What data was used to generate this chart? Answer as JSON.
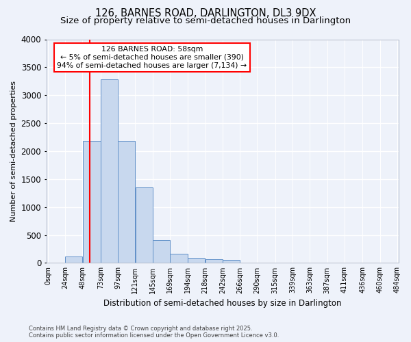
{
  "title1": "126, BARNES ROAD, DARLINGTON, DL3 9DX",
  "title2": "Size of property relative to semi-detached houses in Darlington",
  "xlabel": "Distribution of semi-detached houses by size in Darlington",
  "ylabel": "Number of semi-detached properties",
  "bar_values": [
    0,
    110,
    2180,
    3280,
    2180,
    1350,
    410,
    160,
    90,
    70,
    50,
    0,
    0,
    0,
    0,
    0,
    0,
    0,
    0,
    0
  ],
  "bin_edges": [
    0,
    24,
    48,
    73,
    97,
    121,
    145,
    169,
    194,
    218,
    242,
    266,
    290,
    315,
    339,
    363,
    387,
    411,
    436,
    460,
    484
  ],
  "bin_labels": [
    "0sqm",
    "24sqm",
    "48sqm",
    "73sqm",
    "97sqm",
    "121sqm",
    "145sqm",
    "169sqm",
    "194sqm",
    "218sqm",
    "242sqm",
    "266sqm",
    "290sqm",
    "315sqm",
    "339sqm",
    "363sqm",
    "387sqm",
    "411sqm",
    "436sqm",
    "460sqm",
    "484sqm"
  ],
  "bar_color": "#c8d8ee",
  "bar_edge_color": "#6090c8",
  "ylim": [
    0,
    4000
  ],
  "yticks": [
    0,
    500,
    1000,
    1500,
    2000,
    2500,
    3000,
    3500,
    4000
  ],
  "property_sqm": 58,
  "annotation_title": "126 BARNES ROAD: 58sqm",
  "annotation_line1": "← 5% of semi-detached houses are smaller (390)",
  "annotation_line2": "94% of semi-detached houses are larger (7,134) →",
  "footer1": "Contains HM Land Registry data © Crown copyright and database right 2025.",
  "footer2": "Contains public sector information licensed under the Open Government Licence v3.0.",
  "bg_color": "#eef2fa",
  "grid_color": "#ffffff",
  "title_fontsize": 10.5,
  "subtitle_fontsize": 9.5,
  "axis_fontsize": 8.5
}
